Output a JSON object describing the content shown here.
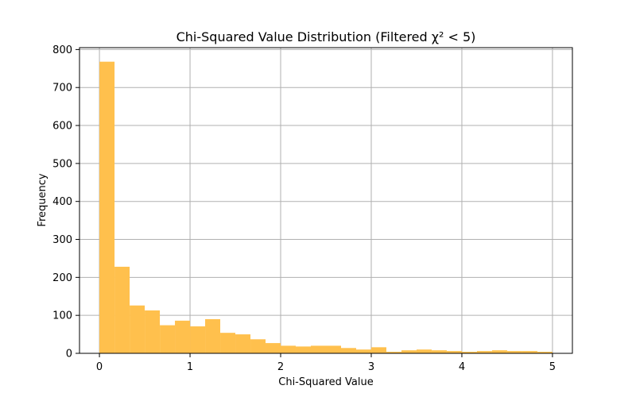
{
  "chart_data": {
    "type": "bar",
    "title": "Chi-Squared Value Distribution (Filtered χ² < 5)",
    "xlabel": "Chi-Squared Value",
    "ylabel": "Frequency",
    "xlim": [
      -0.22,
      5.22
    ],
    "ylim": [
      0,
      805
    ],
    "xticks": [
      "0",
      "1",
      "2",
      "3",
      "4",
      "5"
    ],
    "yticks": [
      "0",
      "100",
      "200",
      "300",
      "400",
      "500",
      "600",
      "700",
      "800"
    ],
    "grid": true,
    "bar_color": "#ffc04d",
    "bin_edges": [
      0,
      0.1667,
      0.3333,
      0.5,
      0.6667,
      0.8333,
      1.0,
      1.1667,
      1.3333,
      1.5,
      1.6667,
      1.8333,
      2.0,
      2.1667,
      2.3333,
      2.5,
      2.6667,
      2.8333,
      3.0,
      3.1667,
      3.3333,
      3.5,
      3.6667,
      3.8333,
      4.0,
      4.1667,
      4.3333,
      4.5,
      4.6667,
      4.8333,
      5.0
    ],
    "values": [
      768,
      228,
      126,
      113,
      74,
      86,
      71,
      90,
      54,
      50,
      37,
      27,
      20,
      18,
      20,
      20,
      14,
      10,
      16,
      4,
      8,
      10,
      8,
      6,
      4,
      6,
      8,
      6,
      6,
      4
    ]
  }
}
